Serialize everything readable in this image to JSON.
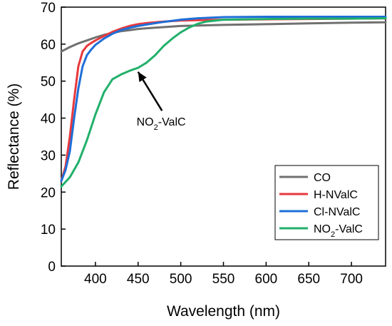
{
  "chart_data": {
    "type": "line",
    "xlabel": "Wavelength (nm)",
    "ylabel": "Reflectance (%)",
    "xlim": [
      360,
      740
    ],
    "ylim": [
      0,
      70
    ],
    "xticks": [
      400,
      450,
      500,
      550,
      600,
      650,
      700
    ],
    "yticks": [
      0,
      10,
      20,
      30,
      40,
      50,
      60,
      70
    ],
    "grid": false,
    "legend_position": "bottom-right",
    "series": [
      {
        "name": "CO",
        "color": "#707070",
        "x": [
          360,
          370,
          380,
          390,
          400,
          410,
          420,
          430,
          440,
          450,
          460,
          480,
          500,
          550,
          600,
          650,
          700,
          740
        ],
        "y": [
          58,
          59.2,
          60.2,
          61.0,
          61.8,
          62.5,
          63.0,
          63.5,
          63.8,
          64.1,
          64.3,
          64.6,
          64.9,
          65.2,
          65.4,
          65.6,
          65.8,
          65.9
        ]
      },
      {
        "name": "H-NValC",
        "color": "#e8383d",
        "x": [
          360,
          365,
          370,
          375,
          380,
          385,
          390,
          395,
          400,
          410,
          420,
          430,
          440,
          450,
          460,
          480,
          500,
          550,
          600,
          650,
          700,
          740
        ],
        "y": [
          23,
          27,
          35,
          45,
          54,
          58,
          59.5,
          60.3,
          61,
          62.2,
          63.3,
          64.2,
          64.9,
          65.4,
          65.7,
          66.1,
          66.4,
          66.6,
          66.7,
          66.8,
          66.9,
          67
        ]
      },
      {
        "name": "Cl-NValC",
        "color": "#1f6fd8",
        "x": [
          360,
          365,
          370,
          375,
          380,
          385,
          390,
          395,
          400,
          410,
          420,
          430,
          440,
          450,
          460,
          480,
          500,
          520,
          550,
          600,
          650,
          700,
          740
        ],
        "y": [
          23,
          26,
          31,
          40,
          48,
          54,
          57,
          58.5,
          59.8,
          61.5,
          62.8,
          63.8,
          64.4,
          64.9,
          65.3,
          66.0,
          66.6,
          67.0,
          67.3,
          67.4,
          67.4,
          67.4,
          67.4
        ]
      },
      {
        "name": "NO₂-ValC",
        "color": "#21b06a",
        "x": [
          360,
          370,
          380,
          390,
          400,
          410,
          420,
          430,
          440,
          450,
          460,
          470,
          480,
          490,
          500,
          510,
          520,
          530,
          550,
          600,
          650,
          700,
          740
        ],
        "y": [
          21.5,
          24,
          28,
          34,
          41,
          47,
          50.5,
          51.8,
          52.8,
          53.6,
          55,
          57,
          59.5,
          61.5,
          63.2,
          64.5,
          65.5,
          66.1,
          66.6,
          66.8,
          66.9,
          66.9,
          67
        ]
      }
    ],
    "annotations": [
      {
        "text_main": "NO",
        "text_sub": "2",
        "text_rest": "-ValC",
        "arrow_from": [
          478,
          42
        ],
        "arrow_to": [
          450,
          52.5
        ],
        "text_at": [
          477,
          38
        ]
      }
    ]
  }
}
